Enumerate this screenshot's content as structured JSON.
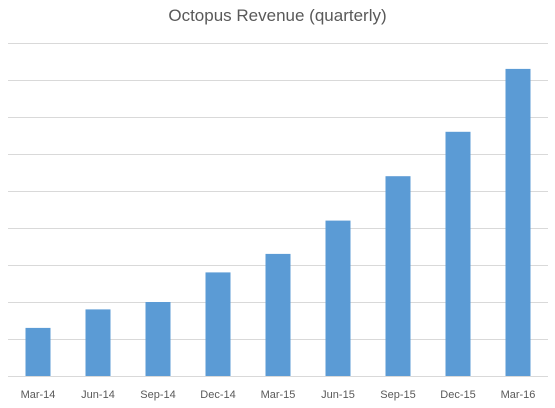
{
  "chart_data": {
    "type": "bar",
    "title": "Octopus Revenue (quarterly)",
    "xlabel": "",
    "ylabel": "",
    "categories": [
      "Mar-14",
      "Jun-14",
      "Sep-14",
      "Dec-14",
      "Mar-15",
      "Jun-15",
      "Sep-15",
      "Dec-15",
      "Mar-16"
    ],
    "values": [
      1.3,
      1.8,
      2.0,
      2.8,
      3.3,
      4.2,
      5.4,
      6.6,
      8.3
    ],
    "ylim": [
      0,
      9
    ],
    "y_gridlines": [
      1,
      2,
      3,
      4,
      5,
      6,
      7,
      8,
      9
    ],
    "y_tick_labels_shown": false,
    "grid": true,
    "legend": "none",
    "bar_color": "#5b9bd5"
  }
}
